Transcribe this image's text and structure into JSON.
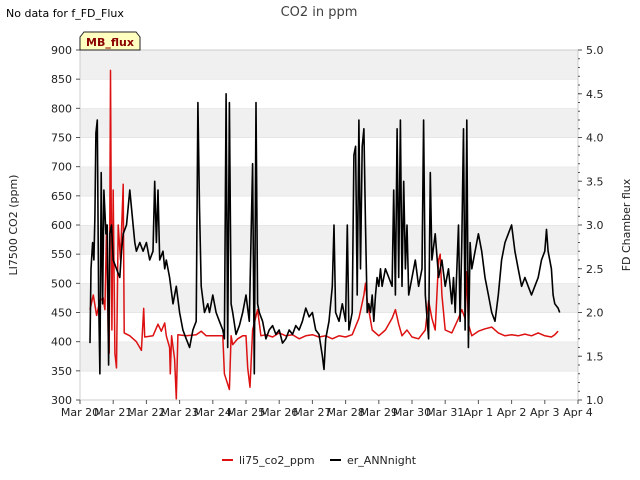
{
  "no_data_note": "No data for f_FD_Flux",
  "chart_data": {
    "type": "line",
    "title": "CO2 in ppm",
    "badge": "MB_flux",
    "ylabel": "LI7500 CO2 (ppm)",
    "y2label": "FD Chamber flux",
    "ylim": [
      300,
      900
    ],
    "y2lim": [
      1.0,
      5.0
    ],
    "xlim": [
      0,
      15
    ],
    "yticks": [
      300,
      350,
      400,
      450,
      500,
      550,
      600,
      650,
      700,
      750,
      800,
      850,
      900
    ],
    "y2ticks": [
      1.0,
      1.5,
      2.0,
      2.5,
      3.0,
      3.5,
      4.0,
      4.5,
      5.0
    ],
    "x_ticks": [
      {
        "v": 0,
        "label": "Mar 20"
      },
      {
        "v": 1,
        "label": "Mar 21"
      },
      {
        "v": 2,
        "label": "Mar 22"
      },
      {
        "v": 3,
        "label": "Mar 23"
      },
      {
        "v": 4,
        "label": "Mar 24"
      },
      {
        "v": 5,
        "label": "Mar 25"
      },
      {
        "v": 6,
        "label": "Mar 26"
      },
      {
        "v": 7,
        "label": "Mar 27"
      },
      {
        "v": 8,
        "label": "Mar 28"
      },
      {
        "v": 9,
        "label": "Mar 29"
      },
      {
        "v": 10,
        "label": "Mar 30"
      },
      {
        "v": 11,
        "label": "Mar 31"
      },
      {
        "v": 12,
        "label": "Apr 1"
      },
      {
        "v": 13,
        "label": "Apr 2"
      },
      {
        "v": 14,
        "label": "Apr 3"
      },
      {
        "v": 15,
        "label": "Apr 4"
      }
    ],
    "series": [
      {
        "name": "li75_co2_ppm",
        "color": "#dd1111",
        "axis": "left",
        "points": [
          [
            0.3,
            455
          ],
          [
            0.4,
            480
          ],
          [
            0.5,
            445
          ],
          [
            0.6,
            470
          ],
          [
            0.7,
            475
          ],
          [
            0.75,
            455
          ],
          [
            0.8,
            600
          ],
          [
            0.85,
            410
          ],
          [
            0.88,
            380
          ],
          [
            0.92,
            865
          ],
          [
            0.96,
            420
          ],
          [
            1.0,
            660
          ],
          [
            1.05,
            380
          ],
          [
            1.1,
            355
          ],
          [
            1.15,
            600
          ],
          [
            1.22,
            540
          ],
          [
            1.3,
            670
          ],
          [
            1.33,
            415
          ],
          [
            1.5,
            410
          ],
          [
            1.7,
            400
          ],
          [
            1.85,
            385
          ],
          [
            1.92,
            457
          ],
          [
            1.95,
            408
          ],
          [
            2.2,
            410
          ],
          [
            2.35,
            430
          ],
          [
            2.45,
            418
          ],
          [
            2.55,
            432
          ],
          [
            2.6,
            410
          ],
          [
            2.7,
            390
          ],
          [
            2.72,
            345
          ],
          [
            2.76,
            410
          ],
          [
            2.85,
            370
          ],
          [
            2.9,
            302
          ],
          [
            2.95,
            412
          ],
          [
            3.2,
            410
          ],
          [
            3.5,
            412
          ],
          [
            3.65,
            418
          ],
          [
            3.8,
            410
          ],
          [
            4.1,
            410
          ],
          [
            4.3,
            410
          ],
          [
            4.35,
            345
          ],
          [
            4.5,
            318
          ],
          [
            4.55,
            410
          ],
          [
            4.6,
            395
          ],
          [
            4.75,
            405
          ],
          [
            4.9,
            410
          ],
          [
            5.0,
            410
          ],
          [
            5.05,
            355
          ],
          [
            5.12,
            322
          ],
          [
            5.2,
            420
          ],
          [
            5.35,
            455
          ],
          [
            5.45,
            410
          ],
          [
            5.6,
            412
          ],
          [
            5.8,
            408
          ],
          [
            6.0,
            415
          ],
          [
            6.2,
            410
          ],
          [
            6.4,
            412
          ],
          [
            6.6,
            405
          ],
          [
            6.8,
            410
          ],
          [
            7.0,
            412
          ],
          [
            7.2,
            408
          ],
          [
            7.4,
            410
          ],
          [
            7.6,
            405
          ],
          [
            7.8,
            410
          ],
          [
            8.0,
            408
          ],
          [
            8.2,
            412
          ],
          [
            8.4,
            440
          ],
          [
            8.55,
            480
          ],
          [
            8.6,
            500
          ],
          [
            8.65,
            470
          ],
          [
            8.8,
            420
          ],
          [
            9.0,
            410
          ],
          [
            9.2,
            420
          ],
          [
            9.4,
            440
          ],
          [
            9.5,
            455
          ],
          [
            9.6,
            430
          ],
          [
            9.7,
            410
          ],
          [
            9.85,
            420
          ],
          [
            10.0,
            408
          ],
          [
            10.2,
            405
          ],
          [
            10.4,
            420
          ],
          [
            10.5,
            470
          ],
          [
            10.6,
            440
          ],
          [
            10.7,
            420
          ],
          [
            10.8,
            540
          ],
          [
            10.85,
            550
          ],
          [
            10.9,
            480
          ],
          [
            11.0,
            420
          ],
          [
            11.2,
            415
          ],
          [
            11.4,
            440
          ],
          [
            11.5,
            455
          ],
          [
            11.6,
            440
          ],
          [
            11.65,
            520
          ],
          [
            11.7,
            430
          ],
          [
            11.8,
            410
          ],
          [
            12.0,
            418
          ],
          [
            12.2,
            422
          ],
          [
            12.4,
            425
          ],
          [
            12.6,
            415
          ],
          [
            12.8,
            410
          ],
          [
            13.0,
            412
          ],
          [
            13.2,
            410
          ],
          [
            13.4,
            413
          ],
          [
            13.6,
            410
          ],
          [
            13.8,
            415
          ],
          [
            14.0,
            410
          ],
          [
            14.2,
            408
          ],
          [
            14.3,
            412
          ],
          [
            14.4,
            418
          ]
        ]
      },
      {
        "name": "er_ANNnight",
        "color": "#000000",
        "axis": "right",
        "points": [
          [
            0.3,
            1.65
          ],
          [
            0.33,
            2.5
          ],
          [
            0.38,
            2.8
          ],
          [
            0.42,
            2.6
          ],
          [
            0.45,
            3.1
          ],
          [
            0.48,
            4.05
          ],
          [
            0.52,
            4.2
          ],
          [
            0.56,
            2.2
          ],
          [
            0.6,
            1.3
          ],
          [
            0.64,
            3.6
          ],
          [
            0.68,
            2.1
          ],
          [
            0.72,
            3.4
          ],
          [
            0.78,
            2.9
          ],
          [
            0.82,
            3.0
          ],
          [
            0.86,
            1.4
          ],
          [
            0.9,
            2.9
          ],
          [
            0.95,
            3.0
          ],
          [
            1.0,
            2.6
          ],
          [
            1.1,
            2.5
          ],
          [
            1.2,
            2.4
          ],
          [
            1.25,
            2.7
          ],
          [
            1.3,
            2.9
          ],
          [
            1.4,
            3.0
          ],
          [
            1.5,
            3.4
          ],
          [
            1.6,
            3.0
          ],
          [
            1.65,
            2.8
          ],
          [
            1.7,
            2.7
          ],
          [
            1.8,
            2.8
          ],
          [
            1.9,
            2.7
          ],
          [
            2.0,
            2.8
          ],
          [
            2.1,
            2.6
          ],
          [
            2.2,
            2.7
          ],
          [
            2.25,
            3.5
          ],
          [
            2.3,
            2.8
          ],
          [
            2.35,
            3.4
          ],
          [
            2.4,
            2.6
          ],
          [
            2.5,
            2.7
          ],
          [
            2.55,
            2.5
          ],
          [
            2.6,
            2.6
          ],
          [
            2.7,
            2.4
          ],
          [
            2.8,
            2.1
          ],
          [
            2.9,
            2.3
          ],
          [
            3.0,
            2.0
          ],
          [
            3.1,
            1.8
          ],
          [
            3.2,
            1.7
          ],
          [
            3.3,
            1.6
          ],
          [
            3.4,
            1.8
          ],
          [
            3.5,
            1.9
          ],
          [
            3.55,
            4.4
          ],
          [
            3.6,
            3.2
          ],
          [
            3.65,
            2.3
          ],
          [
            3.75,
            2.0
          ],
          [
            3.85,
            2.1
          ],
          [
            3.9,
            2.0
          ],
          [
            4.0,
            2.2
          ],
          [
            4.1,
            2.0
          ],
          [
            4.2,
            1.9
          ],
          [
            4.3,
            1.8
          ],
          [
            4.35,
            1.7
          ],
          [
            4.4,
            4.5
          ],
          [
            4.45,
            1.6
          ],
          [
            4.5,
            4.4
          ],
          [
            4.55,
            2.1
          ],
          [
            4.6,
            2.0
          ],
          [
            4.7,
            1.75
          ],
          [
            4.8,
            1.85
          ],
          [
            4.9,
            2.0
          ],
          [
            5.0,
            2.2
          ],
          [
            5.1,
            1.9
          ],
          [
            5.2,
            3.7
          ],
          [
            5.25,
            1.3
          ],
          [
            5.3,
            4.4
          ],
          [
            5.35,
            2.1
          ],
          [
            5.4,
            2.0
          ],
          [
            5.5,
            1.9
          ],
          [
            5.6,
            1.7
          ],
          [
            5.7,
            1.8
          ],
          [
            5.8,
            1.85
          ],
          [
            5.9,
            1.75
          ],
          [
            6.0,
            1.8
          ],
          [
            6.1,
            1.65
          ],
          [
            6.2,
            1.7
          ],
          [
            6.3,
            1.8
          ],
          [
            6.4,
            1.75
          ],
          [
            6.5,
            1.85
          ],
          [
            6.6,
            1.8
          ],
          [
            6.7,
            1.9
          ],
          [
            6.8,
            2.05
          ],
          [
            6.9,
            1.95
          ],
          [
            7.0,
            2.0
          ],
          [
            7.1,
            1.8
          ],
          [
            7.2,
            1.75
          ],
          [
            7.3,
            1.5
          ],
          [
            7.35,
            1.35
          ],
          [
            7.4,
            1.7
          ],
          [
            7.5,
            1.9
          ],
          [
            7.6,
            2.3
          ],
          [
            7.65,
            3.0
          ],
          [
            7.7,
            2.0
          ],
          [
            7.8,
            1.9
          ],
          [
            7.9,
            2.1
          ],
          [
            8.0,
            1.9
          ],
          [
            8.05,
            3.0
          ],
          [
            8.1,
            1.8
          ],
          [
            8.2,
            2.0
          ],
          [
            8.25,
            3.8
          ],
          [
            8.3,
            3.9
          ],
          [
            8.35,
            2.2
          ],
          [
            8.4,
            4.2
          ],
          [
            8.45,
            2.5
          ],
          [
            8.5,
            3.9
          ],
          [
            8.55,
            4.1
          ],
          [
            8.6,
            3.0
          ],
          [
            8.65,
            2.0
          ],
          [
            8.7,
            2.1
          ],
          [
            8.75,
            2.0
          ],
          [
            8.8,
            2.2
          ],
          [
            8.85,
            1.9
          ],
          [
            8.9,
            2.2
          ],
          [
            8.95,
            2.4
          ],
          [
            9.0,
            2.3
          ],
          [
            9.05,
            2.5
          ],
          [
            9.1,
            2.3
          ],
          [
            9.2,
            2.5
          ],
          [
            9.3,
            2.4
          ],
          [
            9.4,
            2.3
          ],
          [
            9.45,
            3.4
          ],
          [
            9.5,
            2.2
          ],
          [
            9.55,
            4.1
          ],
          [
            9.6,
            2.4
          ],
          [
            9.65,
            4.2
          ],
          [
            9.7,
            2.3
          ],
          [
            9.75,
            3.5
          ],
          [
            9.8,
            2.5
          ],
          [
            9.85,
            3.0
          ],
          [
            9.9,
            2.2
          ],
          [
            10.0,
            2.4
          ],
          [
            10.1,
            2.6
          ],
          [
            10.2,
            2.3
          ],
          [
            10.3,
            2.5
          ],
          [
            10.35,
            4.2
          ],
          [
            10.4,
            2.2
          ],
          [
            10.5,
            1.7
          ],
          [
            10.55,
            3.6
          ],
          [
            10.6,
            2.6
          ],
          [
            10.7,
            2.9
          ],
          [
            10.8,
            2.4
          ],
          [
            10.9,
            2.6
          ],
          [
            11.0,
            2.3
          ],
          [
            11.1,
            2.5
          ],
          [
            11.2,
            2.1
          ],
          [
            11.25,
            2.4
          ],
          [
            11.3,
            2.0
          ],
          [
            11.4,
            3.0
          ],
          [
            11.45,
            1.9
          ],
          [
            11.5,
            2.8
          ],
          [
            11.55,
            4.1
          ],
          [
            11.6,
            1.8
          ],
          [
            11.65,
            4.2
          ],
          [
            11.7,
            1.6
          ],
          [
            11.75,
            2.8
          ],
          [
            11.8,
            2.5
          ],
          [
            11.9,
            2.7
          ],
          [
            12.0,
            2.9
          ],
          [
            12.1,
            2.7
          ],
          [
            12.2,
            2.4
          ],
          [
            12.3,
            2.2
          ],
          [
            12.4,
            2.0
          ],
          [
            12.5,
            1.9
          ],
          [
            12.6,
            2.2
          ],
          [
            12.7,
            2.6
          ],
          [
            12.8,
            2.8
          ],
          [
            12.9,
            2.9
          ],
          [
            13.0,
            3.0
          ],
          [
            13.1,
            2.7
          ],
          [
            13.2,
            2.5
          ],
          [
            13.3,
            2.3
          ],
          [
            13.4,
            2.4
          ],
          [
            13.5,
            2.3
          ],
          [
            13.6,
            2.2
          ],
          [
            13.7,
            2.3
          ],
          [
            13.8,
            2.4
          ],
          [
            13.9,
            2.6
          ],
          [
            14.0,
            2.7
          ],
          [
            14.05,
            2.95
          ],
          [
            14.1,
            2.7
          ],
          [
            14.2,
            2.5
          ],
          [
            14.25,
            2.2
          ],
          [
            14.3,
            2.1
          ],
          [
            14.4,
            2.05
          ],
          [
            14.45,
            2.0
          ]
        ]
      }
    ]
  }
}
